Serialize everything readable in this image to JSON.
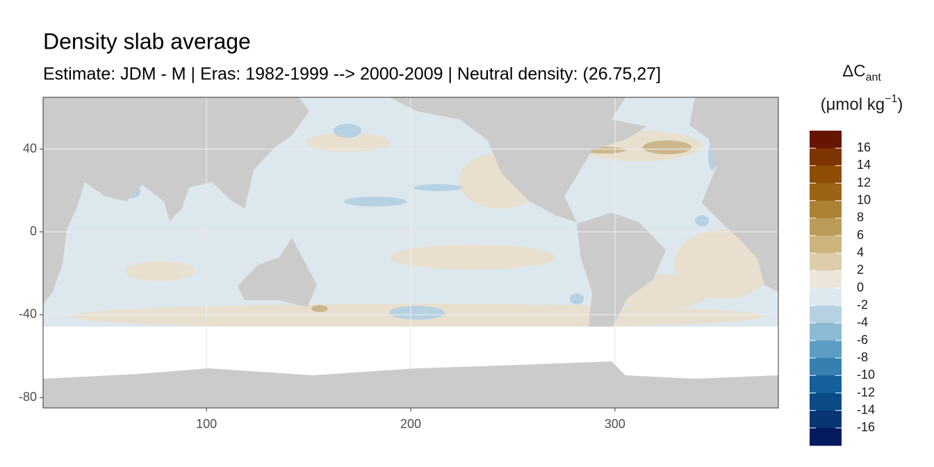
{
  "chart_data": {
    "type": "map",
    "title": "Density slab average",
    "subtitle": "Estimate: JDM - M | Eras: 1982-1999 --> 2000-2009 | Neutral density: (26.75,27]",
    "xlim": [
      20,
      380
    ],
    "ylim": [
      -85,
      65
    ],
    "xticks": [
      100,
      200,
      300
    ],
    "yticks": [
      40,
      0,
      -40,
      -80
    ],
    "grid": true,
    "legend": {
      "title": "ΔC",
      "title_subscript": "ant",
      "units": "(μmol kg",
      "units_superscript": "−1",
      "units_close": ")",
      "breaks": [
        16,
        14,
        12,
        10,
        8,
        6,
        4,
        2,
        0,
        -2,
        -4,
        -6,
        -8,
        -10,
        -12,
        -14,
        -16
      ],
      "colors": [
        "#661500",
        "#7d3400",
        "#8e4c05",
        "#9b6414",
        "#ab8134",
        "#bc9b58",
        "#cdb47f",
        "#ddcdab",
        "#ece6da",
        "#dde8ef",
        "#b5d1e2",
        "#8cb9d3",
        "#5c9dc4",
        "#3580b0",
        "#13609a",
        "#0a4a86",
        "#0a3574",
        "#061a60"
      ]
    }
  }
}
